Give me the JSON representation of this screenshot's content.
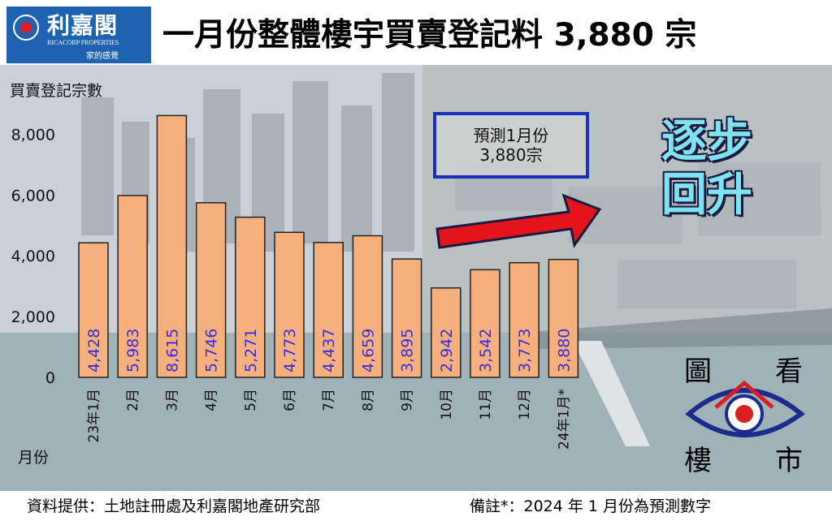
{
  "header": {
    "logo_name": "利嘉閣",
    "logo_en": "RICACORP PROPERTIES",
    "logo_tag": "家的感覺",
    "title": "一月份整體樓宇買賣登記料 3,880 宗"
  },
  "callouts": {
    "forecast_line1": "預測1月份",
    "forecast_line2": "3,880宗",
    "rising_line1": "逐步",
    "rising_line2": "回升"
  },
  "brand2": {
    "c1": "圖",
    "c2": "看",
    "c3": "樓",
    "c4": "市"
  },
  "footer": {
    "source": "資料提供：土地註冊處及利嘉閣地產研究部",
    "note": "備註*：2024 年 1 月份為預測數字"
  },
  "colors": {
    "bar_fill": "#f5b07d",
    "bar_stroke": "#222222",
    "value_text": "#3b2ed9",
    "arrow": "#e3141b"
  },
  "chart_data": {
    "type": "bar",
    "ylabel": "買賣登記宗數",
    "xlabel": "月份",
    "ylim": [
      0,
      9000
    ],
    "yticks": [
      0,
      2000,
      4000,
      6000,
      8000
    ],
    "ytick_labels": [
      "0",
      "2,000",
      "4,000",
      "6,000",
      "8,000"
    ],
    "grid": false,
    "categories": [
      "23年1月",
      "2月",
      "3月",
      "4月",
      "5月",
      "6月",
      "7月",
      "8月",
      "9月",
      "10月",
      "11月",
      "12月",
      "24年1月*"
    ],
    "values": [
      4428,
      5983,
      8615,
      5746,
      5271,
      4773,
      4437,
      4659,
      3895,
      2942,
      3542,
      3773,
      3880
    ],
    "value_labels": [
      "4,428",
      "5,983",
      "8,615",
      "5,746",
      "5,271",
      "4,773",
      "4,437",
      "4,659",
      "3,895",
      "2,942",
      "3,542",
      "3,773",
      "3,880"
    ]
  }
}
